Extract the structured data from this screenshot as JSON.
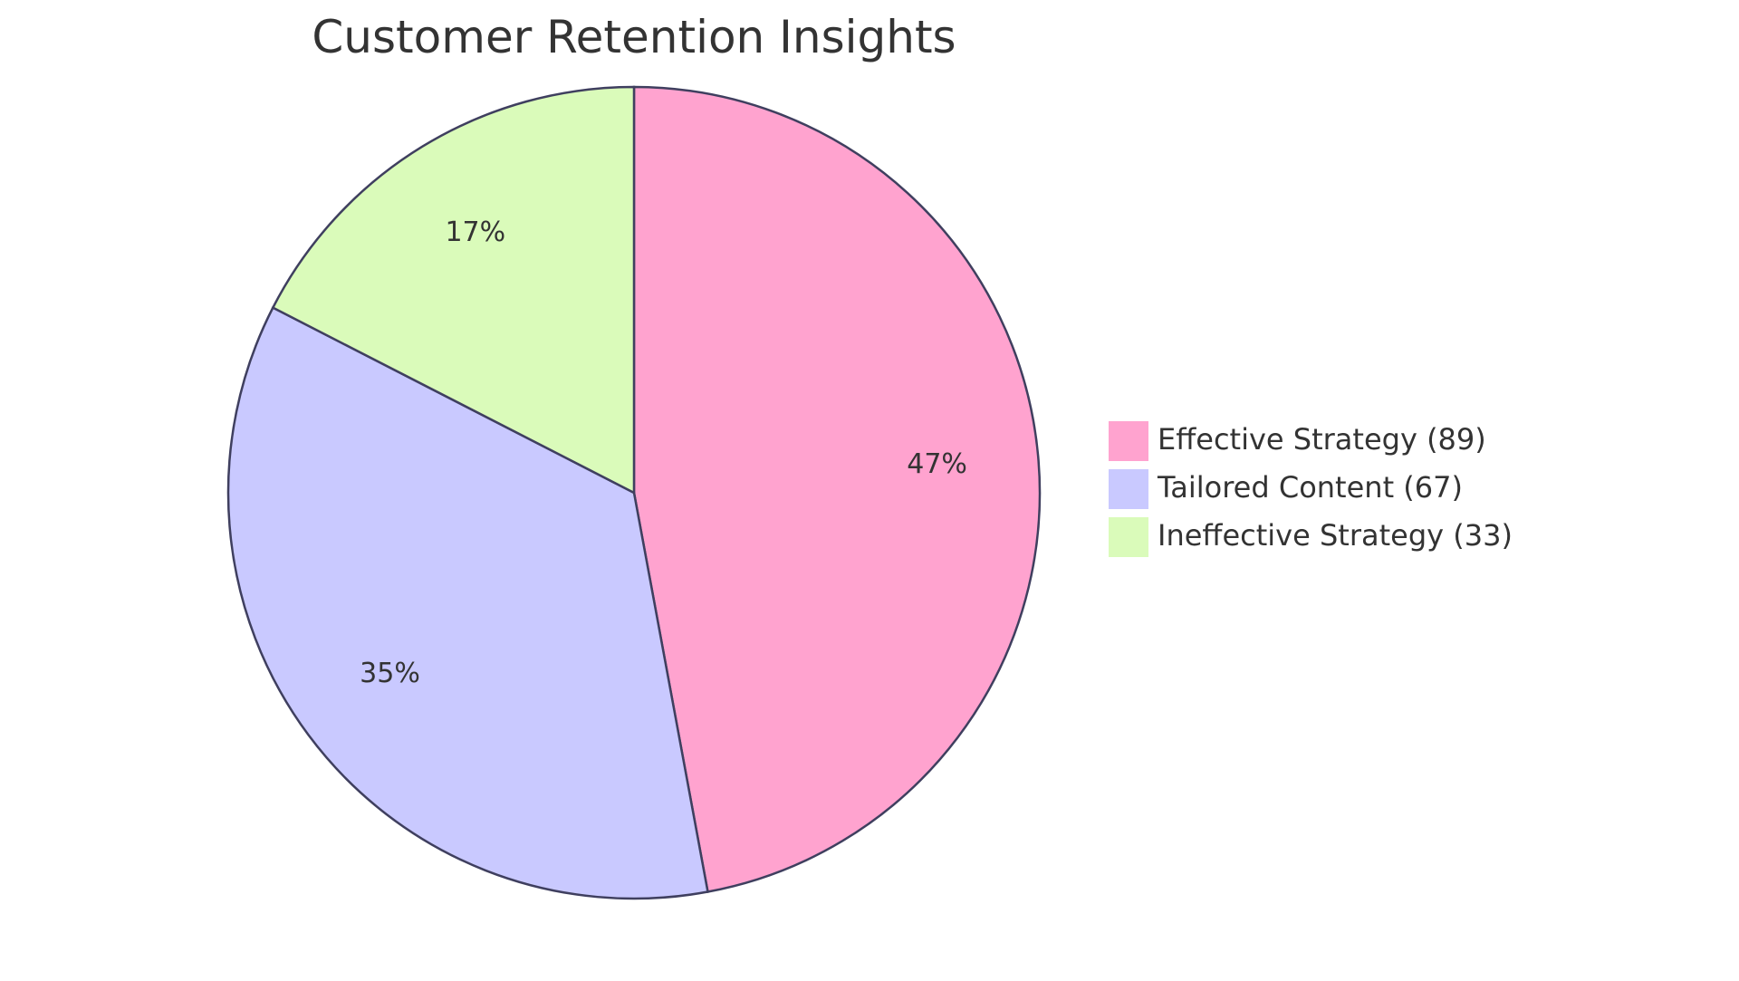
{
  "chart_data": {
    "type": "pie",
    "title": "Customer Retention Insights",
    "slices": [
      {
        "label": "Effective Strategy",
        "value": 89,
        "percent_label": "47%",
        "legend_label": "Effective Strategy (89)",
        "color": "#ffa3cf"
      },
      {
        "label": "Tailored Content",
        "value": 67,
        "percent_label": "35%",
        "legend_label": "Tailored Content (67)",
        "color": "#c9c9ff"
      },
      {
        "label": "Ineffective Strategy",
        "value": 33,
        "percent_label": "17%",
        "legend_label": "Ineffective Strategy (33)",
        "color": "#dafbba"
      }
    ],
    "legend_position": "right"
  }
}
